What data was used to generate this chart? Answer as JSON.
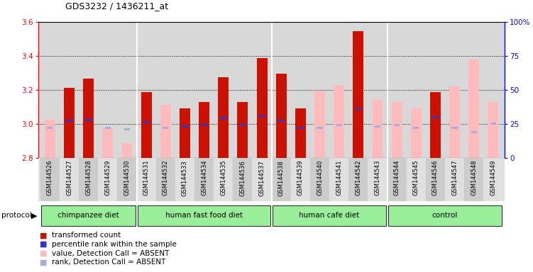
{
  "title": "GDS3232 / 1436211_at",
  "samples": [
    "GSM144526",
    "GSM144527",
    "GSM144528",
    "GSM144529",
    "GSM144530",
    "GSM144531",
    "GSM144532",
    "GSM144533",
    "GSM144534",
    "GSM144535",
    "GSM144536",
    "GSM144537",
    "GSM144538",
    "GSM144539",
    "GSM144540",
    "GSM144541",
    "GSM144542",
    "GSM144543",
    "GSM144544",
    "GSM144545",
    "GSM144546",
    "GSM144547",
    "GSM144548",
    "GSM144549"
  ],
  "red_values": [
    null,
    3.21,
    3.265,
    null,
    null,
    3.185,
    null,
    3.09,
    3.13,
    3.275,
    3.13,
    3.385,
    3.295,
    3.09,
    null,
    null,
    3.545,
    null,
    null,
    null,
    3.185,
    null,
    null,
    null
  ],
  "pink_values": [
    3.025,
    null,
    null,
    2.975,
    2.885,
    null,
    3.11,
    null,
    null,
    null,
    null,
    null,
    null,
    null,
    3.19,
    3.23,
    null,
    3.14,
    3.13,
    3.09,
    null,
    3.22,
    3.38,
    3.13
  ],
  "blue_percentiles": [
    22,
    27,
    28,
    22,
    21,
    26,
    22,
    23,
    24,
    29,
    24,
    31,
    27,
    22,
    22,
    24,
    36,
    23,
    24,
    22,
    30,
    22,
    19,
    25
  ],
  "absent_flags": [
    true,
    false,
    false,
    true,
    true,
    false,
    true,
    false,
    false,
    false,
    false,
    false,
    false,
    false,
    true,
    true,
    false,
    true,
    true,
    true,
    false,
    true,
    true,
    true
  ],
  "groups": [
    {
      "label": "chimpanzee diet",
      "start": 0,
      "end": 4
    },
    {
      "label": "human fast food diet",
      "start": 5,
      "end": 11
    },
    {
      "label": "human cafe diet",
      "start": 12,
      "end": 17
    },
    {
      "label": "control",
      "start": 18,
      "end": 23
    }
  ],
  "ymin": 2.8,
  "ymax": 3.6,
  "yticks": [
    2.8,
    3.0,
    3.2,
    3.4,
    3.6
  ],
  "grid_lines": [
    3.0,
    3.2,
    3.4
  ],
  "yright_ticks": [
    0,
    25,
    50,
    75,
    100
  ],
  "bar_width": 0.55,
  "dark_red": "#cc1100",
  "light_pink": "#ffbbbb",
  "blue_color": "#3333cc",
  "light_blue": "#aaaadd",
  "plot_bg": "#d8d8d8",
  "group_bg": "#88ee88",
  "white": "#ffffff"
}
